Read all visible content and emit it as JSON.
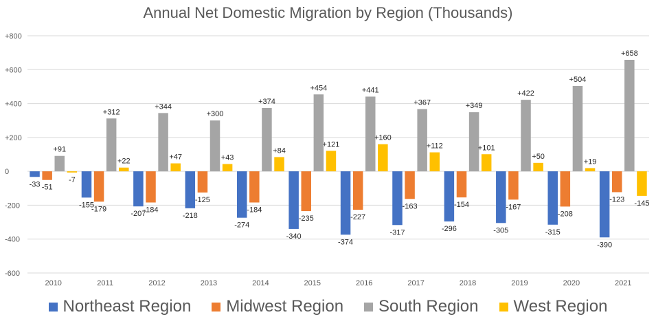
{
  "chart_data": {
    "type": "bar",
    "title": "Annual Net Domestic Migration by Region (Thousands)",
    "categories": [
      "2010",
      "2011",
      "2012",
      "2013",
      "2014",
      "2015",
      "2016",
      "2017",
      "2018",
      "2019",
      "2020",
      "2021"
    ],
    "series": [
      {
        "name": "Northeast Region",
        "color": "#4472c4",
        "values": [
          -33,
          -155,
          -207,
          -218,
          -274,
          -340,
          -374,
          -317,
          -296,
          -305,
          -315,
          -390
        ],
        "labels": [
          "-33",
          "-155",
          "-207",
          "-218",
          "-274",
          "-340",
          "-374",
          "-317",
          "-296",
          "-305",
          "-315",
          "-390"
        ]
      },
      {
        "name": "Midwest Region",
        "color": "#ed7d31",
        "values": [
          -51,
          -179,
          -184,
          -125,
          -184,
          -235,
          -227,
          -163,
          -154,
          -167,
          -208,
          -123
        ],
        "labels": [
          "-51",
          "-179",
          "-184",
          "-125",
          "-184",
          "-235",
          "-227",
          "-163",
          "-154",
          "-167",
          "-208",
          "-123"
        ]
      },
      {
        "name": "South Region",
        "color": "#a5a5a5",
        "values": [
          91,
          312,
          344,
          300,
          374,
          454,
          441,
          367,
          349,
          422,
          504,
          658
        ],
        "labels": [
          "+91",
          "+312",
          "+344",
          "+300",
          "+374",
          "+454",
          "+441",
          "+367",
          "+349",
          "+422",
          "+504",
          "+658"
        ]
      },
      {
        "name": "West Region",
        "color": "#ffc000",
        "values": [
          -7,
          22,
          47,
          43,
          84,
          121,
          160,
          112,
          101,
          50,
          19,
          -145
        ],
        "labels": [
          "-7",
          "+22",
          "+47",
          "+43",
          "+84",
          "+121",
          "+160",
          "+112",
          "+101",
          "+50",
          "+19",
          "-145"
        ]
      }
    ],
    "ylim": [
      -600,
      800
    ],
    "yticks": [
      -600,
      -400,
      -200,
      0,
      200,
      400,
      600,
      800
    ],
    "ytick_labels": [
      "-600",
      "-400",
      "-200",
      "0",
      "+200",
      "+400",
      "+600",
      "+800"
    ],
    "xlabel": "",
    "ylabel": "",
    "grid": true,
    "legend_position": "bottom"
  }
}
